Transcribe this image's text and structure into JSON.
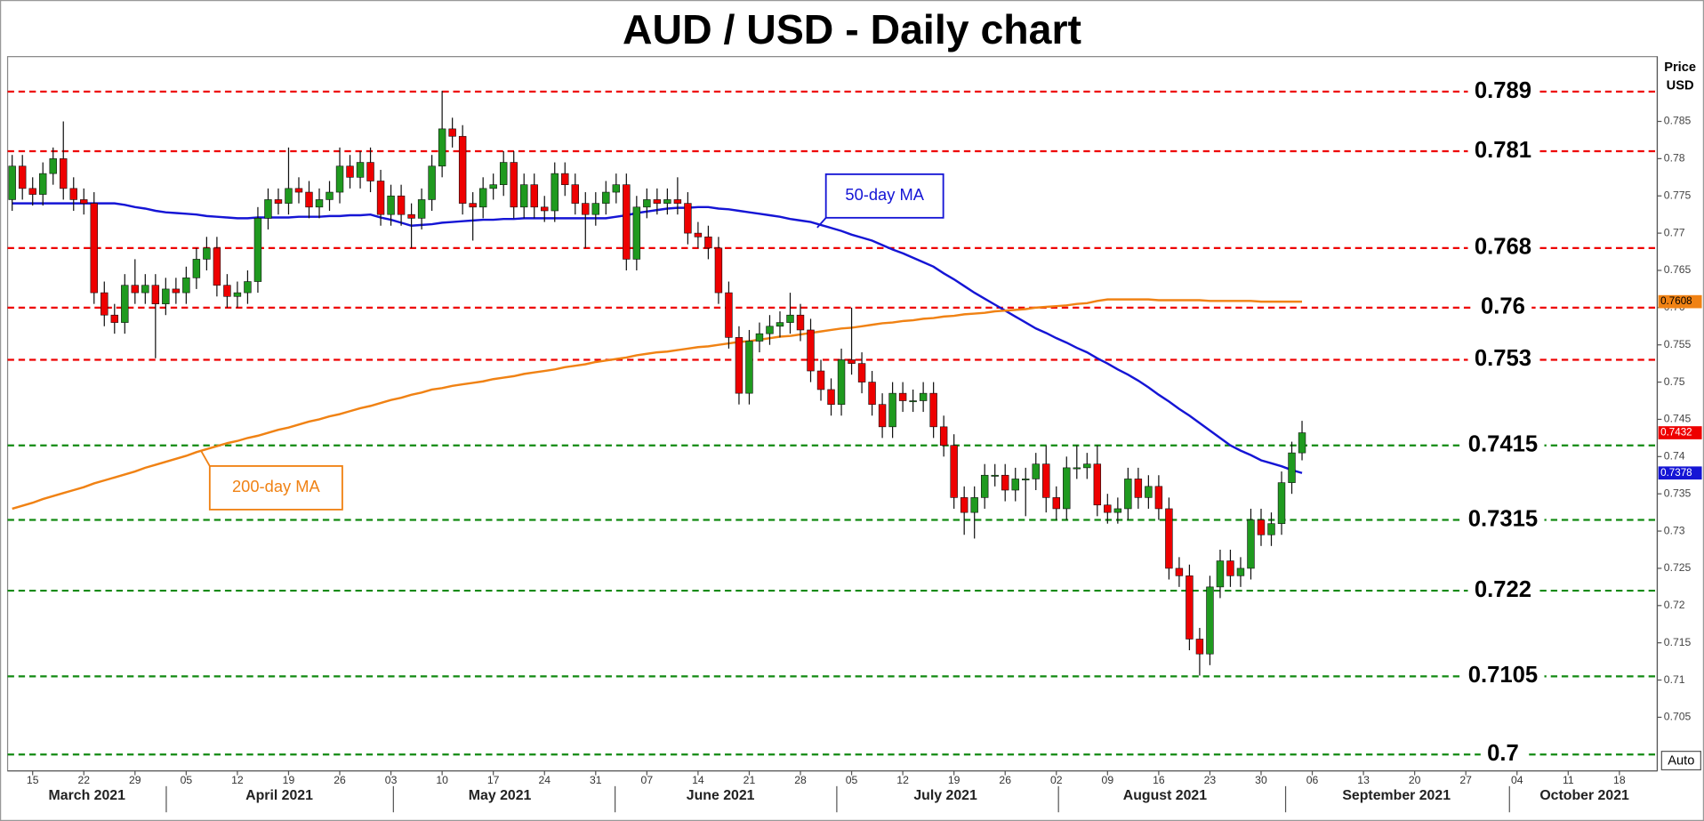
{
  "chart_data": {
    "type": "candlestick",
    "title": "AUD / USD - Daily chart",
    "y_label": [
      "Price",
      "USD"
    ],
    "categories": [
      null,
      null,
      "15",
      null,
      null,
      null,
      null,
      "22",
      null,
      null,
      null,
      null,
      "29",
      null,
      null,
      null,
      null,
      "05",
      null,
      null,
      null,
      null,
      "12",
      null,
      null,
      null,
      null,
      "19",
      null,
      null,
      null,
      null,
      "26",
      null,
      null,
      null,
      null,
      "03",
      null,
      null,
      null,
      null,
      "10",
      null,
      null,
      null,
      null,
      "17",
      null,
      null,
      null,
      null,
      "24",
      null,
      null,
      null,
      null,
      "31",
      null,
      null,
      null,
      null,
      "07",
      null,
      null,
      null,
      null,
      "14",
      null,
      null,
      null,
      null,
      "21",
      null,
      null,
      null,
      null,
      "28",
      null,
      null,
      null,
      null,
      "05",
      null,
      null,
      null,
      null,
      "12",
      null,
      null,
      null,
      null,
      "19",
      null,
      null,
      null,
      null,
      "26",
      null,
      null,
      null,
      null,
      "02",
      null,
      null,
      null,
      null,
      "09",
      null,
      null,
      null,
      null,
      "16",
      null,
      null,
      null,
      null,
      "23",
      null,
      null,
      null,
      null,
      "30",
      null,
      null,
      null,
      null,
      "06",
      null,
      null,
      null,
      null,
      "13",
      null,
      null,
      null,
      null,
      "20",
      null,
      null,
      null,
      null,
      "27",
      null,
      null,
      null,
      null,
      "04",
      null,
      null,
      null,
      null,
      "11",
      null,
      null,
      null,
      null,
      "18",
      null,
      null,
      null
    ],
    "months": [
      "March 2021",
      "April 2021",
      "May 2021",
      "June 2021",
      "July 2021",
      "August 2021",
      "September 2021",
      "October 2021"
    ],
    "open": [
      0.7745,
      0.779,
      0.776,
      0.7752,
      0.778,
      0.78,
      0.776,
      0.7745,
      0.774,
      0.762,
      0.759,
      0.758,
      0.763,
      0.762,
      0.763,
      0.7605,
      0.7625,
      0.762,
      0.764,
      0.7665,
      0.768,
      0.763,
      0.7615,
      0.762,
      0.7635,
      0.772,
      0.7745,
      0.774,
      0.776,
      0.7755,
      0.7735,
      0.7745,
      0.7755,
      0.779,
      0.7775,
      0.7795,
      0.777,
      0.7725,
      0.775,
      0.7725,
      0.772,
      0.7745,
      0.779,
      0.784,
      0.783,
      0.774,
      0.7735,
      0.776,
      0.7765,
      0.7795,
      0.7735,
      0.7765,
      0.7735,
      0.773,
      0.778,
      0.7765,
      0.774,
      0.7725,
      0.774,
      0.7755,
      0.7765,
      0.7665,
      0.7735,
      0.7745,
      0.774,
      0.7745,
      0.774,
      0.77,
      0.7695,
      0.768,
      0.762,
      0.756,
      0.7485,
      0.7555,
      0.7565,
      0.7575,
      0.758,
      0.759,
      0.757,
      0.7515,
      0.749,
      0.747,
      0.753,
      0.7525,
      0.75,
      0.747,
      0.744,
      0.7485,
      0.7475,
      0.7475,
      0.7485,
      0.744,
      0.7415,
      0.7345,
      0.7325,
      0.7345,
      0.7375,
      0.7375,
      0.7355,
      0.737,
      0.737,
      0.739,
      0.7345,
      0.733,
      0.7385,
      0.7385,
      0.739,
      0.7335,
      0.7325,
      0.733,
      0.737,
      0.7345,
      0.736,
      0.733,
      0.725,
      0.724,
      0.7155,
      0.7135,
      0.7225,
      0.726,
      0.724,
      0.725,
      0.7315,
      0.7295,
      0.731,
      0.7365,
      0.7405,
      null,
      null,
      null,
      null,
      null,
      null,
      null,
      null,
      null,
      null,
      null,
      null,
      null,
      null,
      null,
      null,
      null,
      null,
      null,
      null,
      null,
      null,
      null,
      null,
      null,
      null,
      null,
      null,
      null,
      null,
      null,
      null,
      null,
      null
    ],
    "high": [
      0.7805,
      0.7805,
      0.7775,
      0.7795,
      0.7815,
      0.785,
      0.7775,
      0.776,
      0.7755,
      0.7635,
      0.7605,
      0.7645,
      0.7665,
      0.7645,
      0.7645,
      0.764,
      0.764,
      0.7655,
      0.768,
      0.7695,
      0.7695,
      0.7645,
      0.7635,
      0.765,
      0.7735,
      0.776,
      0.776,
      0.7815,
      0.7775,
      0.777,
      0.776,
      0.777,
      0.7815,
      0.7805,
      0.781,
      0.7815,
      0.7785,
      0.7765,
      0.7765,
      0.774,
      0.776,
      0.7805,
      0.7891,
      0.7855,
      0.7845,
      0.7755,
      0.7775,
      0.778,
      0.781,
      0.781,
      0.778,
      0.778,
      0.775,
      0.7795,
      0.7795,
      0.778,
      0.7755,
      0.7755,
      0.777,
      0.778,
      0.778,
      0.775,
      0.776,
      0.776,
      0.776,
      0.7775,
      0.7755,
      0.7715,
      0.771,
      0.7695,
      0.7635,
      0.7575,
      0.757,
      0.758,
      0.759,
      0.7595,
      0.762,
      0.7605,
      0.7585,
      0.753,
      0.7505,
      0.7545,
      0.76,
      0.754,
      0.7515,
      0.7485,
      0.75,
      0.75,
      0.749,
      0.75,
      0.75,
      0.7455,
      0.743,
      0.736,
      0.736,
      0.739,
      0.739,
      0.739,
      0.7385,
      0.7385,
      0.7405,
      0.7415,
      0.736,
      0.74,
      0.7415,
      0.7405,
      0.7415,
      0.735,
      0.7345,
      0.7385,
      0.7385,
      0.7375,
      0.7375,
      0.7345,
      0.7265,
      0.7255,
      0.717,
      0.724,
      0.7275,
      0.7275,
      0.7265,
      0.733,
      0.733,
      0.7325,
      0.738,
      0.742,
      0.7448,
      null,
      null,
      null,
      null,
      null,
      null,
      null,
      null,
      null,
      null,
      null,
      null,
      null,
      null,
      null,
      null,
      null,
      null,
      null,
      null,
      null,
      null,
      null,
      null,
      null,
      null,
      null,
      null,
      null,
      null,
      null,
      null,
      null,
      null
    ],
    "low": [
      0.773,
      0.7745,
      0.7737,
      0.7737,
      0.7765,
      0.7745,
      0.773,
      0.7725,
      0.7605,
      0.7575,
      0.7565,
      0.7565,
      0.7605,
      0.7605,
      0.7532,
      0.759,
      0.7605,
      0.7605,
      0.7625,
      0.765,
      0.7615,
      0.76,
      0.76,
      0.7605,
      0.762,
      0.7705,
      0.7725,
      0.7725,
      0.774,
      0.772,
      0.772,
      0.773,
      0.774,
      0.776,
      0.776,
      0.7755,
      0.771,
      0.771,
      0.771,
      0.768,
      0.7705,
      0.773,
      0.7775,
      0.7815,
      0.7725,
      0.769,
      0.772,
      0.7745,
      0.775,
      0.772,
      0.772,
      0.772,
      0.7715,
      0.7715,
      0.775,
      0.7725,
      0.768,
      0.771,
      0.7725,
      0.774,
      0.765,
      0.765,
      0.772,
      0.7725,
      0.7725,
      0.7725,
      0.7685,
      0.768,
      0.7665,
      0.7605,
      0.7545,
      0.747,
      0.747,
      0.754,
      0.755,
      0.756,
      0.7565,
      0.7555,
      0.75,
      0.7475,
      0.7455,
      0.7455,
      0.751,
      0.7485,
      0.7455,
      0.7425,
      0.7425,
      0.746,
      0.746,
      0.746,
      0.7425,
      0.74,
      0.733,
      0.7295,
      0.729,
      0.733,
      0.736,
      0.734,
      0.734,
      0.732,
      0.7355,
      0.7325,
      0.7315,
      0.7315,
      0.737,
      0.737,
      0.732,
      0.731,
      0.731,
      0.7315,
      0.733,
      0.733,
      0.7315,
      0.7235,
      0.7225,
      0.714,
      0.7106,
      0.712,
      0.721,
      0.7225,
      0.7225,
      0.7235,
      0.728,
      0.728,
      0.7295,
      0.735,
      0.7395,
      null,
      null,
      null,
      null,
      null,
      null,
      null,
      null,
      null,
      null,
      null,
      null,
      null,
      null,
      null,
      null,
      null,
      null,
      null,
      null,
      null,
      null,
      null,
      null,
      null,
      null,
      null,
      null,
      null,
      null,
      null,
      null,
      null,
      null
    ],
    "close": [
      0.779,
      0.776,
      0.7752,
      0.778,
      0.78,
      0.776,
      0.7745,
      0.774,
      0.762,
      0.759,
      0.758,
      0.763,
      0.762,
      0.763,
      0.7605,
      0.7625,
      0.762,
      0.764,
      0.7665,
      0.768,
      0.763,
      0.7615,
      0.762,
      0.7635,
      0.772,
      0.7745,
      0.774,
      0.776,
      0.7755,
      0.7735,
      0.7745,
      0.7755,
      0.779,
      0.7775,
      0.7795,
      0.777,
      0.7725,
      0.775,
      0.7725,
      0.772,
      0.7745,
      0.779,
      0.784,
      0.783,
      0.774,
      0.7735,
      0.776,
      0.7765,
      0.7795,
      0.7735,
      0.7765,
      0.7735,
      0.773,
      0.778,
      0.7765,
      0.774,
      0.7725,
      0.774,
      0.7755,
      0.7765,
      0.7665,
      0.7735,
      0.7745,
      0.774,
      0.7745,
      0.774,
      0.77,
      0.7695,
      0.768,
      0.762,
      0.756,
      0.7485,
      0.7555,
      0.7565,
      0.7575,
      0.758,
      0.759,
      0.757,
      0.7515,
      0.749,
      0.747,
      0.753,
      0.7525,
      0.75,
      0.747,
      0.744,
      0.7485,
      0.7475,
      0.7475,
      0.7485,
      0.744,
      0.7415,
      0.7345,
      0.7325,
      0.7345,
      0.7375,
      0.7375,
      0.7355,
      0.737,
      0.737,
      0.739,
      0.7345,
      0.733,
      0.7385,
      0.7385,
      0.739,
      0.7335,
      0.7325,
      0.733,
      0.737,
      0.7345,
      0.736,
      0.733,
      0.725,
      0.724,
      0.7155,
      0.7135,
      0.7225,
      0.726,
      0.724,
      0.725,
      0.7315,
      0.7295,
      0.731,
      0.7365,
      0.7405,
      0.7432,
      null,
      null,
      null,
      null,
      null,
      null,
      null,
      null,
      null,
      null,
      null,
      null,
      null,
      null,
      null,
      null,
      null,
      null,
      null,
      null,
      null,
      null,
      null,
      null,
      null,
      null,
      null,
      null,
      null,
      null,
      null,
      null,
      null,
      null
    ],
    "up_color": "#1f9a1f",
    "down_color": "#ee0000",
    "moving_averages": [
      {
        "name": "50-day MA",
        "color": "#1515d5",
        "values": [
          0.774,
          0.774,
          0.774,
          0.774,
          0.774,
          0.774,
          0.774,
          0.774,
          0.774,
          0.774,
          0.774,
          0.7738,
          0.7735,
          0.7733,
          0.773,
          0.7728,
          0.7727,
          0.7726,
          0.7725,
          0.7723,
          0.7722,
          0.7721,
          0.772,
          0.772,
          0.7721,
          0.7721,
          0.7721,
          0.7721,
          0.7722,
          0.7722,
          0.7722,
          0.7723,
          0.7723,
          0.7724,
          0.7724,
          0.7725,
          0.7721,
          0.7718,
          0.7714,
          0.771,
          0.7711,
          0.7712,
          0.7714,
          0.7715,
          0.7716,
          0.7717,
          0.7718,
          0.7718,
          0.7719,
          0.7719,
          0.772,
          0.772,
          0.772,
          0.772,
          0.772,
          0.772,
          0.772,
          0.772,
          0.772,
          0.7722,
          0.7724,
          0.7727,
          0.7729,
          0.7731,
          0.7733,
          0.7734,
          0.7734,
          0.7735,
          0.7735,
          0.7733,
          0.7732,
          0.773,
          0.7728,
          0.7726,
          0.7724,
          0.7722,
          0.7719,
          0.7717,
          0.7715,
          0.7711,
          0.7707,
          0.7703,
          0.7698,
          0.7694,
          0.769,
          0.7684,
          0.7678,
          0.7673,
          0.7667,
          0.7661,
          0.7655,
          0.7646,
          0.7638,
          0.7629,
          0.762,
          0.7612,
          0.7604,
          0.7596,
          0.7588,
          0.758,
          0.7572,
          0.7566,
          0.7559,
          0.7553,
          0.7546,
          0.754,
          0.7532,
          0.7525,
          0.7517,
          0.751,
          0.7502,
          0.7493,
          0.7483,
          0.7474,
          0.7464,
          0.7455,
          0.7445,
          0.7435,
          0.7425,
          0.7415,
          0.7408,
          0.7402,
          0.7395,
          0.7391,
          0.7387,
          0.7382,
          0.7378,
          null,
          null,
          null,
          null,
          null,
          null,
          null,
          null,
          null,
          null,
          null,
          null,
          null,
          null,
          null,
          null,
          null,
          null,
          null,
          null,
          null,
          null,
          null,
          null,
          null,
          null,
          null,
          null,
          null,
          null,
          null,
          null,
          null,
          null
        ]
      },
      {
        "name": "200-day MA",
        "color": "#f08214",
        "values": [
          0.733,
          0.7334,
          0.7338,
          0.7343,
          0.7347,
          0.7351,
          0.7355,
          0.7359,
          0.7364,
          0.7368,
          0.7372,
          0.7376,
          0.738,
          0.7385,
          0.7389,
          0.7393,
          0.7397,
          0.7401,
          0.7406,
          0.741,
          0.7414,
          0.7418,
          0.7421,
          0.7425,
          0.7428,
          0.7432,
          0.7436,
          0.7439,
          0.7443,
          0.7447,
          0.745,
          0.7454,
          0.7457,
          0.7461,
          0.7465,
          0.7468,
          0.7472,
          0.7476,
          0.7479,
          0.7483,
          0.7486,
          0.749,
          0.7492,
          0.7495,
          0.7497,
          0.7499,
          0.7501,
          0.7504,
          0.7506,
          0.7508,
          0.7511,
          0.7513,
          0.7515,
          0.7517,
          0.752,
          0.7522,
          0.7524,
          0.7527,
          0.7529,
          0.7531,
          0.7533,
          0.7536,
          0.7538,
          0.754,
          0.7541,
          0.7543,
          0.7545,
          0.7547,
          0.7548,
          0.755,
          0.7552,
          0.7554,
          0.7555,
          0.7557,
          0.7559,
          0.7561,
          0.7562,
          0.7564,
          0.7566,
          0.7568,
          0.757,
          0.7572,
          0.7573,
          0.7575,
          0.7577,
          0.7579,
          0.758,
          0.7582,
          0.7583,
          0.7585,
          0.7586,
          0.7588,
          0.7589,
          0.7591,
          0.7592,
          0.7593,
          0.7595,
          0.7596,
          0.7597,
          0.7598,
          0.76,
          0.7601,
          0.7602,
          0.7603,
          0.7605,
          0.7606,
          0.7609,
          0.7611,
          0.7611,
          0.7611,
          0.7611,
          0.7611,
          0.761,
          0.761,
          0.761,
          0.761,
          0.761,
          0.7609,
          0.7609,
          0.7609,
          0.7609,
          0.7609,
          0.7608,
          0.7608,
          0.7608,
          0.7608,
          0.7608,
          null,
          null,
          null,
          null,
          null,
          null,
          null,
          null,
          null,
          null,
          null,
          null,
          null,
          null,
          null,
          null,
          null,
          null,
          null,
          null,
          null,
          null,
          null,
          null,
          null,
          null,
          null,
          null,
          null,
          null,
          null,
          null,
          null,
          null
        ]
      }
    ],
    "ylim": [
      0.6978,
      0.7937
    ],
    "yticks": [
      0.705,
      0.71,
      0.715,
      0.72,
      0.725,
      0.73,
      0.735,
      0.74,
      0.745,
      0.75,
      0.755,
      0.76,
      0.765,
      0.77,
      0.775,
      0.78,
      0.785
    ],
    "levels": [
      {
        "value": 0.789,
        "color": "#ee0000"
      },
      {
        "value": 0.781,
        "color": "#ee0000"
      },
      {
        "value": 0.768,
        "color": "#ee0000"
      },
      {
        "value": 0.76,
        "color": "#ee0000"
      },
      {
        "value": 0.753,
        "color": "#ee0000"
      },
      {
        "value": 0.7415,
        "color": "#128a12"
      },
      {
        "value": 0.7315,
        "color": "#128a12"
      },
      {
        "value": 0.722,
        "color": "#128a12"
      },
      {
        "value": 0.7105,
        "color": "#128a12"
      },
      {
        "value": 0.7,
        "color": "#128a12"
      }
    ],
    "price_tags": [
      {
        "value": 0.7608,
        "color": "#f08214",
        "text_color": "#000000"
      },
      {
        "value": 0.7432,
        "color": "#ee0000",
        "text_color": "#ffffff"
      },
      {
        "value": 0.7378,
        "color": "#1515d5",
        "text_color": "#ffffff"
      }
    ],
    "button": "Auto"
  }
}
